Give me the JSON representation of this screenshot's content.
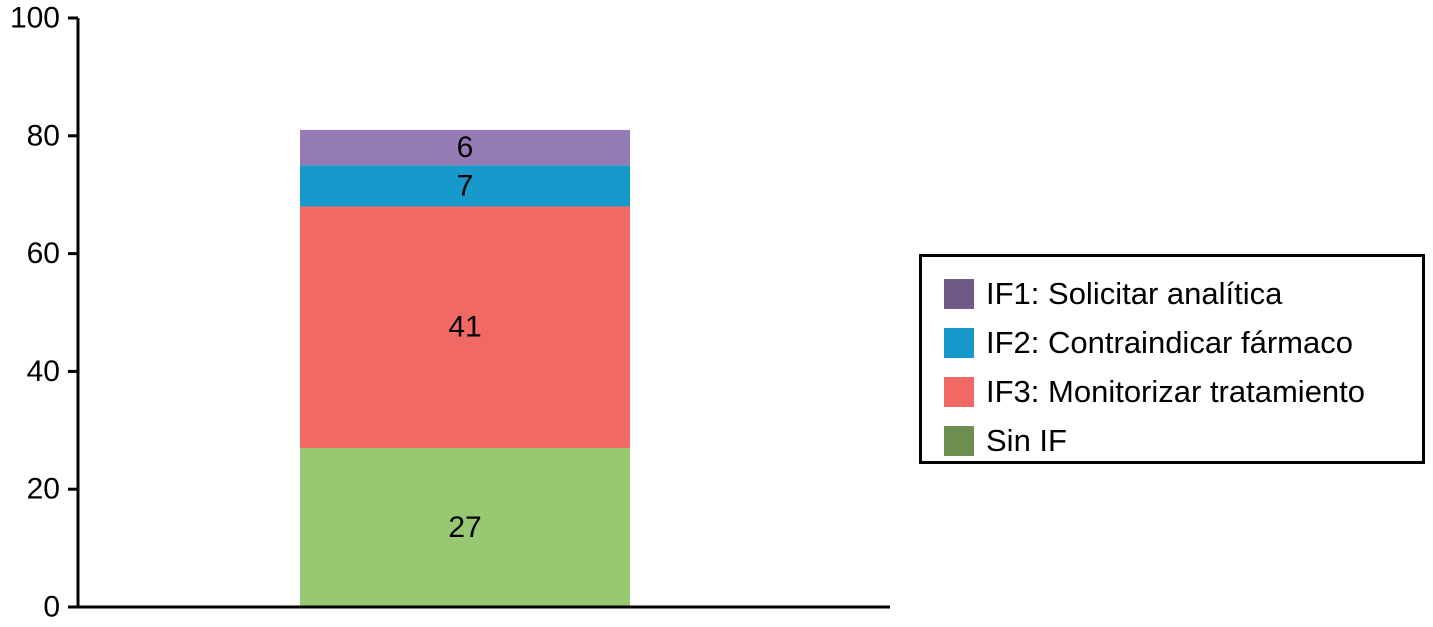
{
  "chart_data": {
    "type": "bar",
    "stacked": true,
    "categories": [
      ""
    ],
    "ylim": [
      0,
      100
    ],
    "yticks": [
      0,
      20,
      40,
      60,
      80,
      100
    ],
    "series": [
      {
        "name": "Sin IF",
        "values": [
          27
        ],
        "color": "#99c872"
      },
      {
        "name": "IF3: Monitorizar tratamiento",
        "values": [
          41
        ],
        "color": "#f06964"
      },
      {
        "name": "IF2: Contraindicar fármaco",
        "values": [
          7
        ],
        "color": "#1899cb"
      },
      {
        "name": "IF1: Solicitar analítica",
        "values": [
          6
        ],
        "color": "#957bb4"
      }
    ],
    "legend": {
      "position": "right",
      "items": [
        {
          "label": "IF1: Solicitar analítica",
          "color": "#705a8a"
        },
        {
          "label": "IF2: Contraindicar fármaco",
          "color": "#1899cb"
        },
        {
          "label": "IF3: Monitorizar tratamiento",
          "color": "#f06964"
        },
        {
          "label": "Sin IF",
          "color": "#6c8e4e"
        }
      ]
    }
  }
}
